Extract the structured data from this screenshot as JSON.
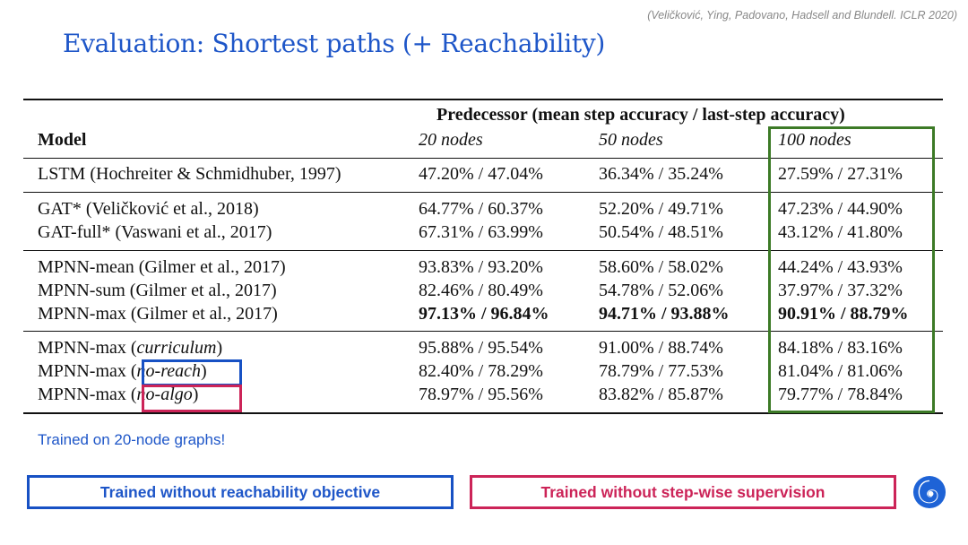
{
  "citation": "(Veličković, Ying, Padovano, Hadsell and Blundell. ICLR 2020)",
  "title": "Evaluation: Shortest paths (+ Reachability)",
  "table": {
    "group_header": "Predecessor (mean step accuracy / last-step accuracy)",
    "model_header": "Model",
    "col_headers": [
      "20 nodes",
      "50 nodes",
      "100 nodes"
    ],
    "groups": [
      [
        {
          "model": "LSTM (Hochreiter & Schmidhuber, 1997)",
          "values": [
            "47.20% / 47.04%",
            "36.34% / 35.24%",
            "27.59% / 27.31%"
          ]
        }
      ],
      [
        {
          "model": "GAT* (Veličković et al., 2018)",
          "values": [
            "64.77% / 60.37%",
            "52.20% / 49.71%",
            "47.23% / 44.90%"
          ]
        },
        {
          "model": "GAT-full* (Vaswani et al., 2017)",
          "values": [
            "67.31% / 63.99%",
            "50.54% / 48.51%",
            "43.12% / 41.80%"
          ]
        }
      ],
      [
        {
          "model": "MPNN-mean (Gilmer et al., 2017)",
          "values": [
            "93.83% / 93.20%",
            "58.60% / 58.02%",
            "44.24% / 43.93%"
          ]
        },
        {
          "model": "MPNN-sum (Gilmer et al., 2017)",
          "values": [
            "82.46% / 80.49%",
            "54.78% / 52.06%",
            "37.97% / 37.32%"
          ]
        },
        {
          "model": "MPNN-max (Gilmer et al., 2017)",
          "values": [
            "97.13% / 96.84%",
            "94.71% / 93.88%",
            "90.91% / 88.79%"
          ]
        }
      ],
      [
        {
          "model_prefix": "MPNN-max (",
          "model_italic": "curriculum",
          "model_suffix": ")",
          "values": [
            "95.88% / 95.54%",
            "91.00% / 88.74%",
            "84.18% / 83.16%"
          ]
        },
        {
          "model_prefix": "MPNN-max (",
          "model_italic": "no-reach",
          "model_suffix": ")",
          "values": [
            "82.40% / 78.29%",
            "78.79% / 77.53%",
            "81.04% / 81.06%"
          ]
        },
        {
          "model_prefix": "MPNN-max (",
          "model_italic": "no-algo",
          "model_suffix": ")",
          "values": [
            "78.97% / 95.56%",
            "83.82% / 85.87%",
            "79.77% / 78.84%"
          ]
        }
      ]
    ]
  },
  "note": "Trained on 20-node graphs!",
  "legend": {
    "blue_label": "Trained without reachability objective",
    "red_label": "Trained without step-wise supervision"
  },
  "colors": {
    "title_blue": "#1e56c8",
    "no_reach_blue": "#1751c4",
    "no_algo_red": "#cc2458",
    "highlight_green": "#3c7a26"
  },
  "icons": {
    "logo": "deepmind-logo-icon"
  }
}
